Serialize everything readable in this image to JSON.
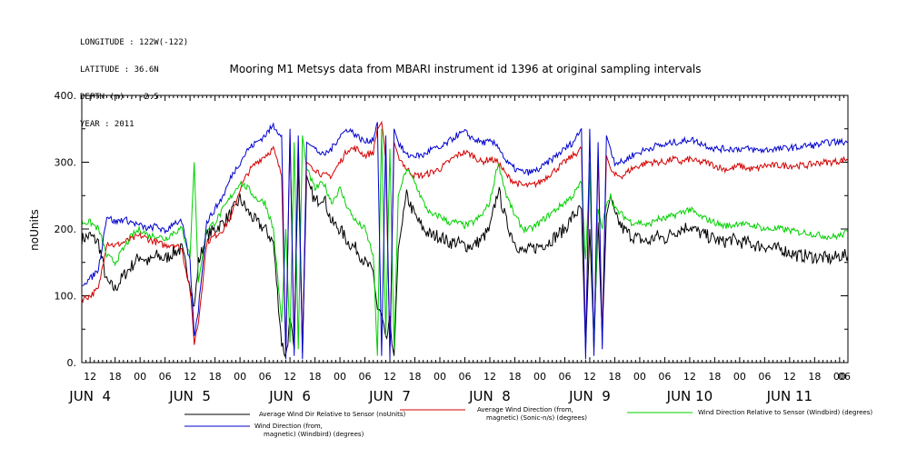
{
  "metadata": {
    "longitude": "LONGITUDE : 122W(-122)",
    "latitude": "LATITUDE : 36.6N",
    "depth": "DEPTH (m) : -2.5",
    "year": "YEAR : 2011"
  },
  "chart_data": {
    "type": "line",
    "title": "Mooring M1 Metsys data from MBARI instrument id 1396 at original sampling intervals",
    "ylabel": "noUnits",
    "xlabel": "",
    "ylim": [
      0,
      400
    ],
    "yticks": [
      0,
      100,
      200,
      300,
      400
    ],
    "ytick_labels": [
      "0.",
      "100.",
      "200.",
      "300.",
      "400."
    ],
    "xlim_hours": [
      -14,
      170
    ],
    "hour_ticks": [
      {
        "h": -12,
        "label": "12"
      },
      {
        "h": -6,
        "label": "18"
      },
      {
        "h": 0,
        "label": "00"
      },
      {
        "h": 6,
        "label": "06"
      },
      {
        "h": 12,
        "label": "12"
      },
      {
        "h": 18,
        "label": "18"
      },
      {
        "h": 24,
        "label": "00"
      },
      {
        "h": 30,
        "label": "06"
      },
      {
        "h": 36,
        "label": "12"
      },
      {
        "h": 42,
        "label": "18"
      },
      {
        "h": 48,
        "label": "00"
      },
      {
        "h": 54,
        "label": "06"
      },
      {
        "h": 60,
        "label": "12"
      },
      {
        "h": 66,
        "label": "18"
      },
      {
        "h": 72,
        "label": "00"
      },
      {
        "h": 78,
        "label": "06"
      },
      {
        "h": 84,
        "label": "12"
      },
      {
        "h": 90,
        "label": "18"
      },
      {
        "h": 96,
        "label": "00"
      },
      {
        "h": 102,
        "label": "06"
      },
      {
        "h": 108,
        "label": "12"
      },
      {
        "h": 114,
        "label": "18"
      },
      {
        "h": 120,
        "label": "00"
      },
      {
        "h": 126,
        "label": "06"
      },
      {
        "h": 132,
        "label": "12"
      },
      {
        "h": 138,
        "label": "18"
      },
      {
        "h": 144,
        "label": "00"
      },
      {
        "h": 150,
        "label": "06"
      },
      {
        "h": 156,
        "label": "12"
      },
      {
        "h": 162,
        "label": "18"
      },
      {
        "h": 168,
        "label": "00"
      },
      {
        "h": 174,
        "label": "06"
      }
    ],
    "day_labels": [
      {
        "h": -12,
        "label": "JUN  4"
      },
      {
        "h": 12,
        "label": "JUN  5"
      },
      {
        "h": 36,
        "label": "JUN  6"
      },
      {
        "h": 60,
        "label": "JUN  7"
      },
      {
        "h": 84,
        "label": "JUN  8"
      },
      {
        "h": 108,
        "label": "JUN  9"
      },
      {
        "h": 132,
        "label": "JUN 10"
      },
      {
        "h": 156,
        "label": "JUN 11"
      }
    ],
    "series": [
      {
        "name": "Average Wind Dir Relative to Sensor (noUnits)",
        "color": "#000000",
        "x": [
          -14,
          -12,
          -10,
          -8,
          -6,
          -4,
          -2,
          0,
          2,
          4,
          6,
          8,
          10,
          12,
          13,
          14,
          16,
          18,
          20,
          22,
          24,
          26,
          28,
          30,
          32,
          34,
          35,
          36,
          37,
          38,
          39,
          40,
          42,
          44,
          46,
          48,
          50,
          52,
          54,
          56,
          57,
          58,
          59,
          60,
          61,
          62,
          64,
          66,
          68,
          70,
          72,
          74,
          76,
          78,
          80,
          82,
          84,
          86,
          88,
          90,
          92,
          94,
          96,
          98,
          100,
          102,
          104,
          106,
          107,
          108,
          109,
          110,
          111,
          112,
          113,
          114,
          116,
          118,
          120,
          122,
          124,
          126,
          128,
          130,
          132,
          134,
          136,
          138,
          140,
          142,
          144,
          146,
          148,
          150,
          152,
          154,
          156,
          158,
          160,
          162,
          164,
          166,
          168,
          170
        ],
        "y": [
          185,
          190,
          180,
          120,
          110,
          130,
          145,
          160,
          150,
          160,
          155,
          165,
          170,
          120,
          80,
          150,
          190,
          200,
          210,
          225,
          245,
          225,
          210,
          200,
          180,
          30,
          10,
          60,
          20,
          300,
          15,
          280,
          240,
          250,
          210,
          200,
          180,
          170,
          150,
          135,
          80,
          70,
          30,
          60,
          10,
          170,
          250,
          220,
          200,
          190,
          190,
          180,
          180,
          175,
          175,
          185,
          200,
          260,
          210,
          180,
          165,
          170,
          175,
          180,
          190,
          200,
          220,
          230,
          20,
          200,
          30,
          210,
          40,
          220,
          250,
          220,
          200,
          190,
          185,
          180,
          190,
          185,
          195,
          200,
          205,
          195,
          190,
          185,
          180,
          185,
          180,
          180,
          175,
          175,
          170,
          170,
          165,
          160,
          160,
          158,
          157,
          155,
          160,
          160
        ]
      },
      {
        "name": "Average Wind Direction (from, magnetic) (Sonic-n/s) (degrees)",
        "color": "#d40000",
        "x": [
          -14,
          -12,
          -10,
          -8,
          -6,
          -4,
          -2,
          0,
          2,
          4,
          6,
          8,
          10,
          12,
          13,
          14,
          16,
          18,
          20,
          22,
          24,
          26,
          28,
          30,
          32,
          34,
          35,
          36,
          37,
          38,
          39,
          40,
          42,
          44,
          46,
          48,
          50,
          52,
          54,
          56,
          57,
          58,
          59,
          60,
          61,
          62,
          64,
          66,
          68,
          70,
          72,
          74,
          76,
          78,
          80,
          82,
          84,
          86,
          88,
          90,
          92,
          94,
          96,
          98,
          100,
          102,
          104,
          106,
          107,
          108,
          109,
          110,
          111,
          112,
          113,
          114,
          116,
          118,
          120,
          122,
          124,
          126,
          128,
          130,
          132,
          134,
          136,
          138,
          140,
          142,
          144,
          146,
          148,
          150,
          152,
          154,
          156,
          158,
          160,
          162,
          164,
          166,
          168,
          170
        ],
        "y": [
          95,
          100,
          110,
          180,
          175,
          180,
          185,
          190,
          185,
          180,
          175,
          178,
          170,
          110,
          30,
          60,
          180,
          190,
          200,
          220,
          260,
          285,
          300,
          310,
          320,
          280,
          15,
          340,
          30,
          330,
          20,
          300,
          290,
          280,
          280,
          300,
          320,
          320,
          310,
          315,
          350,
          360,
          300,
          20,
          330,
          310,
          290,
          280,
          280,
          285,
          290,
          300,
          310,
          315,
          310,
          300,
          305,
          300,
          280,
          270,
          265,
          265,
          270,
          280,
          290,
          300,
          310,
          320,
          30,
          300,
          20,
          310,
          40,
          310,
          290,
          280,
          280,
          290,
          295,
          300,
          300,
          300,
          305,
          300,
          305,
          300,
          300,
          295,
          290,
          290,
          295,
          290,
          290,
          295,
          295,
          295,
          295,
          295,
          295,
          298,
          300,
          300,
          302,
          305
        ]
      },
      {
        "name": "Wind Direction Relative to Sensor (Windbird) (degrees)",
        "color": "#00d000",
        "x": [
          -14,
          -12,
          -10,
          -8,
          -6,
          -4,
          -2,
          0,
          2,
          4,
          6,
          8,
          10,
          12,
          13,
          14,
          16,
          18,
          20,
          22,
          24,
          26,
          28,
          30,
          32,
          34,
          35,
          36,
          37,
          38,
          39,
          40,
          42,
          44,
          46,
          48,
          50,
          52,
          54,
          56,
          57,
          58,
          59,
          60,
          61,
          62,
          64,
          66,
          68,
          70,
          72,
          74,
          76,
          78,
          80,
          82,
          84,
          86,
          88,
          90,
          92,
          94,
          96,
          98,
          100,
          102,
          104,
          106,
          107,
          108,
          109,
          110,
          111,
          112,
          113,
          114,
          116,
          118,
          120,
          122,
          124,
          126,
          128,
          130,
          132,
          134,
          136,
          138,
          140,
          142,
          144,
          146,
          148,
          150,
          152,
          154,
          156,
          158,
          160,
          162,
          164,
          166,
          168,
          170
        ],
        "y": [
          210,
          210,
          200,
          160,
          150,
          170,
          190,
          200,
          190,
          190,
          185,
          195,
          200,
          160,
          300,
          120,
          200,
          210,
          230,
          250,
          270,
          260,
          245,
          240,
          200,
          60,
          200,
          30,
          330,
          20,
          340,
          290,
          260,
          270,
          240,
          260,
          230,
          210,
          200,
          160,
          10,
          350,
          40,
          320,
          20,
          250,
          290,
          270,
          240,
          220,
          220,
          210,
          210,
          205,
          210,
          220,
          240,
          300,
          250,
          220,
          200,
          200,
          210,
          220,
          230,
          240,
          250,
          270,
          150,
          300,
          20,
          230,
          200,
          240,
          250,
          230,
          220,
          210,
          210,
          205,
          215,
          215,
          220,
          225,
          230,
          220,
          215,
          210,
          205,
          205,
          210,
          205,
          205,
          200,
          200,
          200,
          198,
          195,
          195,
          192,
          190,
          188,
          190,
          195
        ]
      },
      {
        "name": "Wind Direction (from, magnetic) (Windbird) (degrees)",
        "color": "#0000d0",
        "x": [
          -14,
          -12,
          -10,
          -8,
          -6,
          -4,
          -2,
          0,
          2,
          4,
          6,
          8,
          10,
          12,
          13,
          14,
          16,
          18,
          20,
          22,
          24,
          26,
          28,
          30,
          32,
          34,
          35,
          36,
          37,
          38,
          39,
          40,
          42,
          44,
          46,
          48,
          50,
          52,
          54,
          56,
          57,
          58,
          59,
          60,
          61,
          62,
          64,
          66,
          68,
          70,
          72,
          74,
          76,
          78,
          80,
          82,
          84,
          86,
          88,
          90,
          92,
          94,
          96,
          98,
          100,
          102,
          104,
          106,
          107,
          108,
          109,
          110,
          111,
          112,
          113,
          114,
          116,
          118,
          120,
          122,
          124,
          126,
          128,
          130,
          132,
          134,
          136,
          138,
          140,
          142,
          144,
          146,
          148,
          150,
          152,
          154,
          156,
          158,
          160,
          162,
          164,
          166,
          168,
          170
        ],
        "y": [
          118,
          125,
          140,
          220,
          210,
          215,
          210,
          205,
          200,
          205,
          195,
          210,
          210,
          150,
          40,
          80,
          210,
          230,
          250,
          280,
          300,
          320,
          330,
          340,
          355,
          340,
          5,
          350,
          10,
          340,
          5,
          330,
          320,
          310,
          320,
          340,
          350,
          340,
          330,
          335,
          360,
          10,
          340,
          5,
          350,
          330,
          310,
          310,
          310,
          320,
          320,
          330,
          340,
          345,
          335,
          330,
          330,
          325,
          300,
          290,
          285,
          285,
          290,
          300,
          310,
          320,
          330,
          350,
          5,
          350,
          10,
          330,
          20,
          340,
          320,
          300,
          300,
          310,
          315,
          320,
          325,
          325,
          330,
          330,
          335,
          330,
          325,
          320,
          320,
          320,
          320,
          320,
          318,
          318,
          320,
          320,
          322,
          322,
          325,
          325,
          328,
          330,
          330,
          330
        ]
      }
    ],
    "legend": [
      {
        "label_lines": [
          "Average Wind Dir Relative to Sensor (noUnits)"
        ],
        "color": "#000000"
      },
      {
        "label_lines": [
          "Average Wind Direction (from,",
          "magnetic) (Sonic-n/s) (degrees)"
        ],
        "color": "#d40000"
      },
      {
        "label_lines": [
          "Wind Direction Relative to Sensor (Windbird) (degrees)"
        ],
        "color": "#00d000"
      },
      {
        "label_lines": [
          "Wind Direction (from,",
          "magnetic) (Windbird) (degrees)"
        ],
        "color": "#0000d0"
      }
    ]
  }
}
